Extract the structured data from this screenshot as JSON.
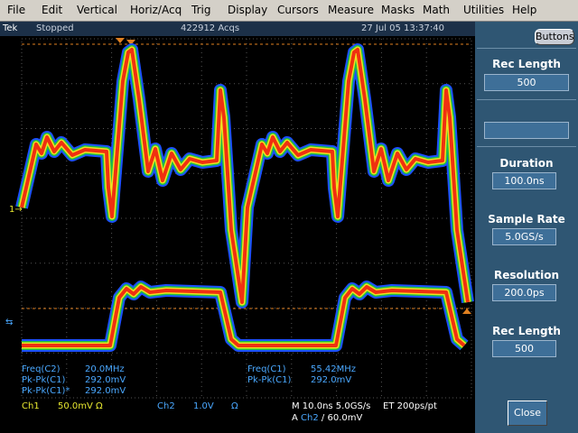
{
  "menu": [
    "File",
    "Edit",
    "Vertical",
    "Horiz/Acq",
    "Trig",
    "Display",
    "Cursors",
    "Measure",
    "Masks",
    "Math",
    "Utilities",
    "Help"
  ],
  "status": {
    "brand": "Tek",
    "state": "Stopped",
    "acqs": "422912 Acqs",
    "timestamp": "27 Jul 05 13:37:40"
  },
  "panel": {
    "buttons": "Buttons",
    "rec_length_top": {
      "label": "Rec Length",
      "value": "500"
    },
    "duration": {
      "label": "Duration",
      "value": "100.0ns"
    },
    "sample_rate": {
      "label": "Sample Rate",
      "value": "5.0GS/s"
    },
    "resolution": {
      "label": "Resolution",
      "value": "200.0ps"
    },
    "rec_length_bottom": {
      "label": "Rec Length",
      "value": "500"
    },
    "close": "Close"
  },
  "measurements": [
    {
      "label": "Freq(C2)",
      "value": "20.0MHz"
    },
    {
      "label": "Pk-Pk(C1)",
      "value": "292.0mV"
    },
    {
      "label": "Pk-Pk(C1)*",
      "value": "292.0mV"
    },
    {
      "label": "Freq(C1)",
      "value": "55.42MHz"
    },
    {
      "label": "Pk-Pk(C1)",
      "value": "292.0mV"
    }
  ],
  "readouts": {
    "ch1": {
      "name": "Ch1",
      "scale": "50.0mV",
      "impedance": "Ω"
    },
    "ch2": {
      "name": "Ch2",
      "scale": "1.0V",
      "impedance": "Ω"
    },
    "timebase": "M 10.0ns 5.0GS/s",
    "et": "ET 200ps/pt",
    "trigger": {
      "mode": "A",
      "source": "Ch2",
      "slope": "/",
      "level": "60.0mV"
    }
  },
  "markers": {
    "ch1": "1→"
  }
}
